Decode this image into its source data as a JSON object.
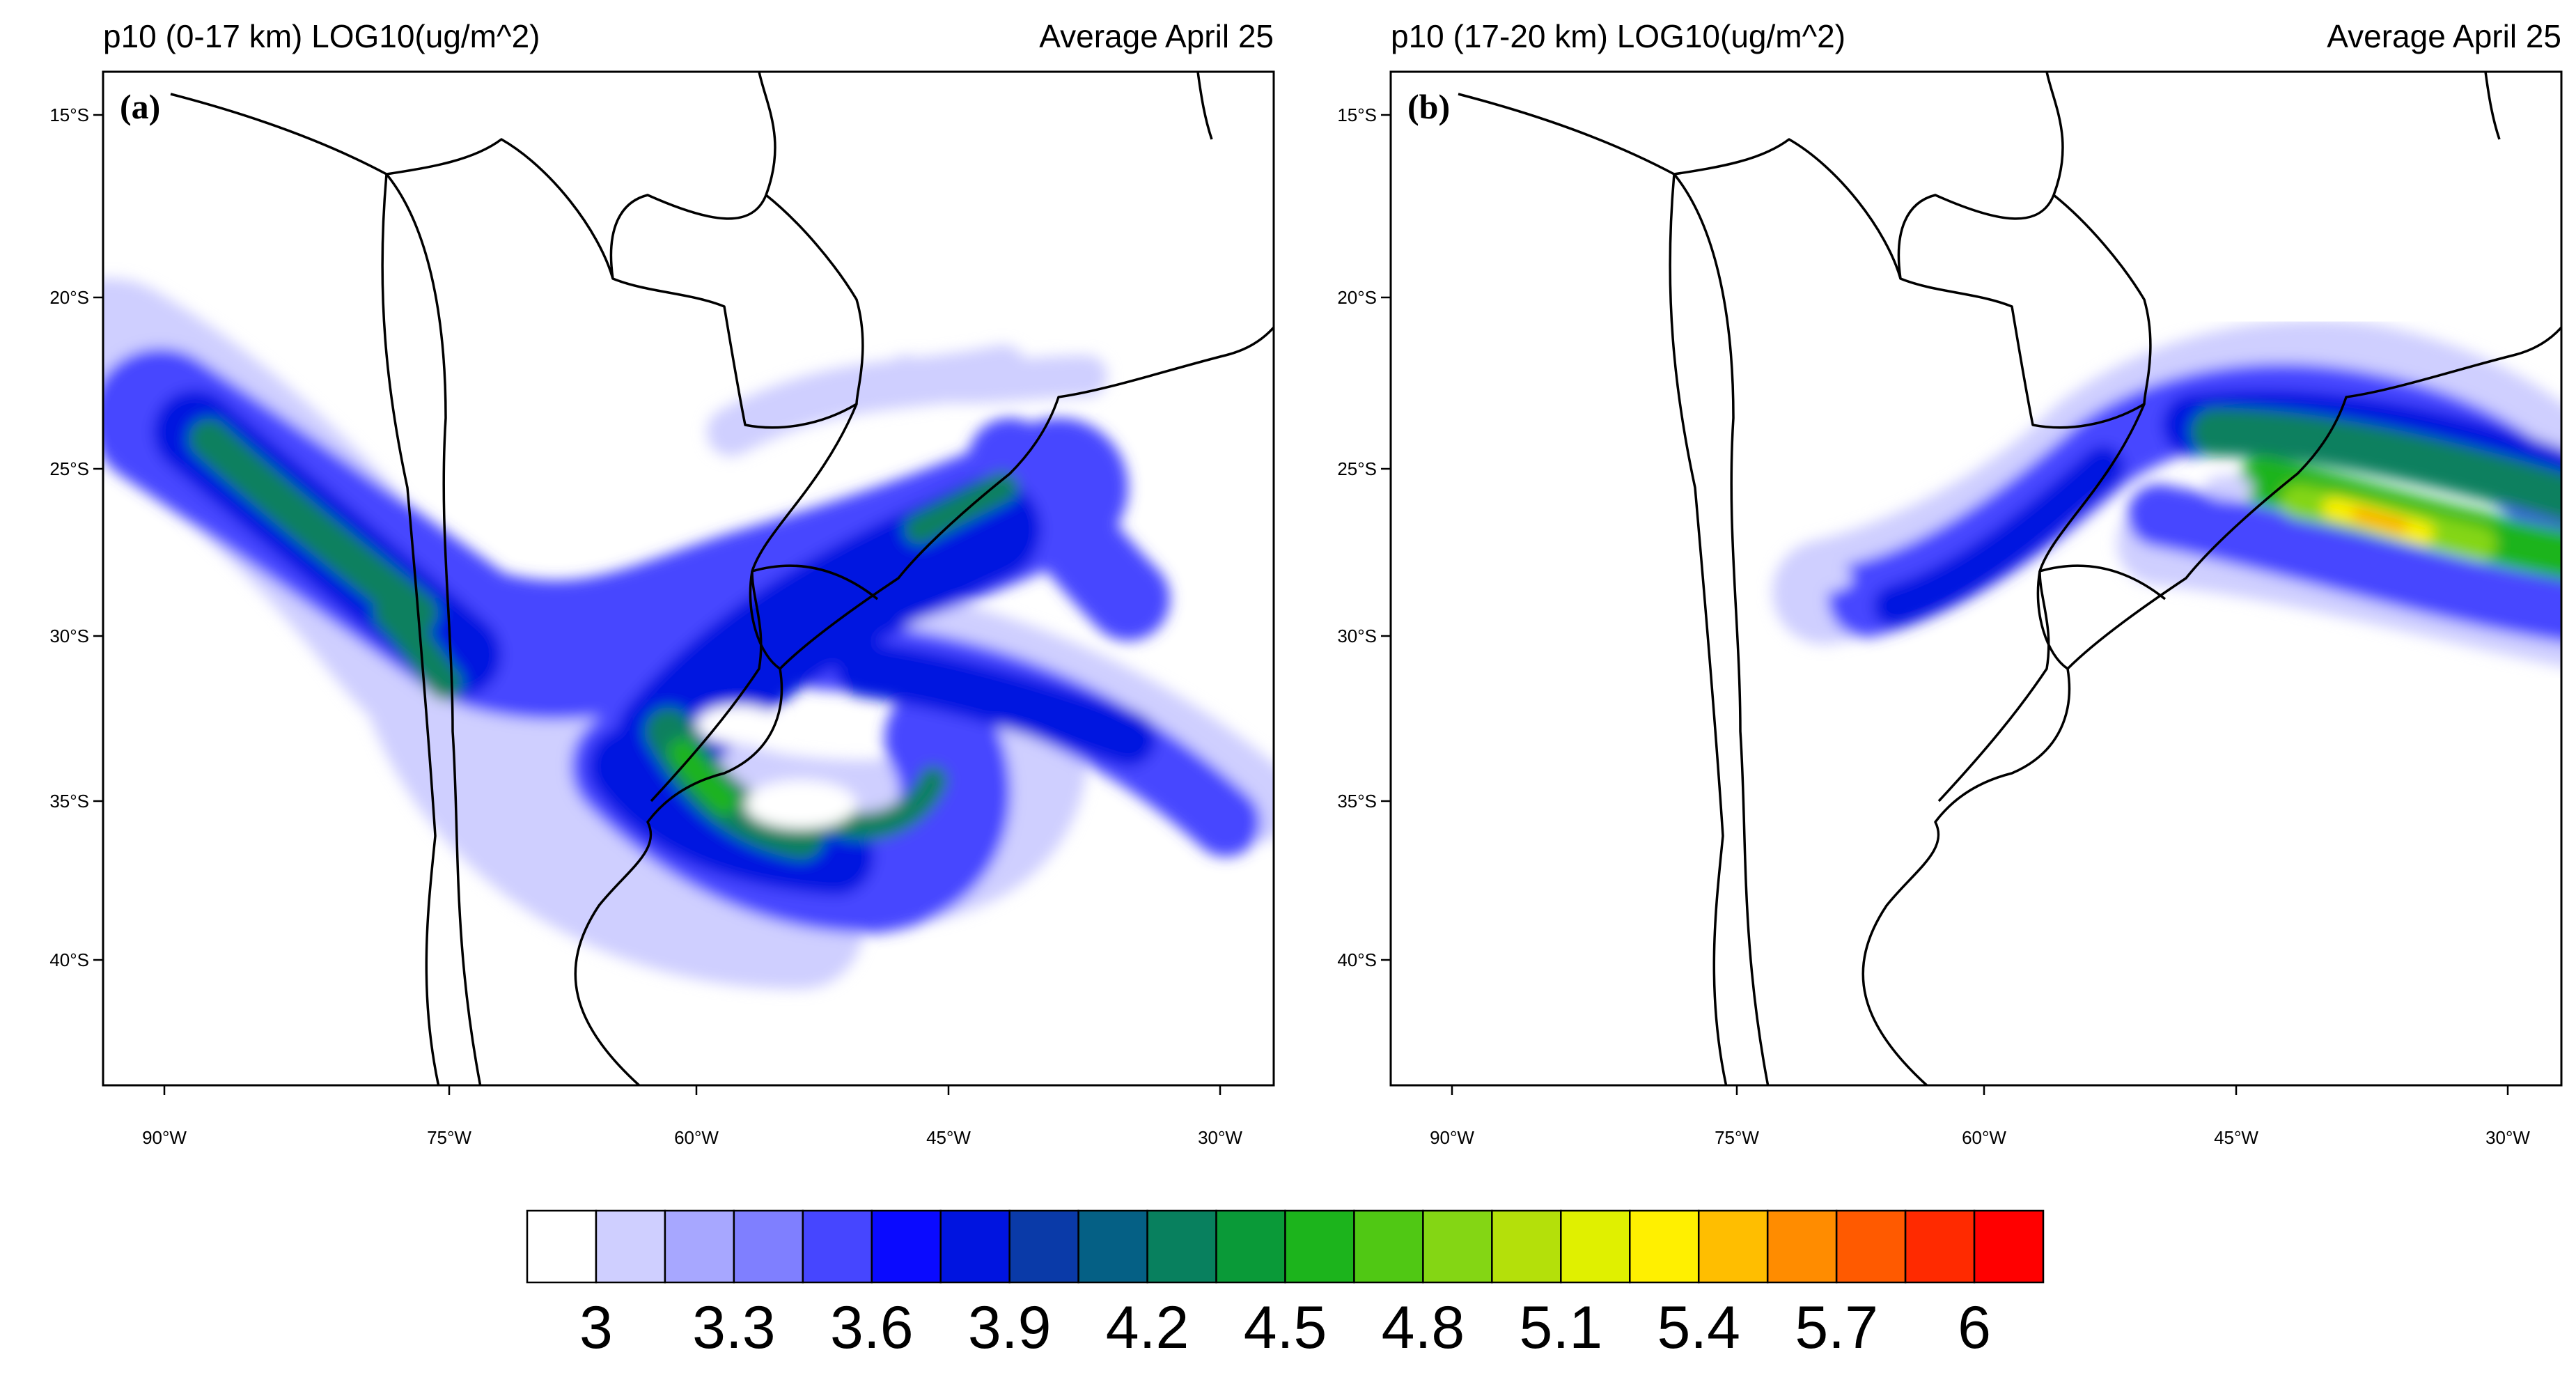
{
  "panels": [
    {
      "id": "a",
      "label": "(a)",
      "title_left": "p10 (0-17 km) LOG10(ug/m^2)",
      "title_right": "Average April 25",
      "lat_ticks": [
        "15°S",
        "20°S",
        "25°S",
        "30°S",
        "35°S",
        "40°S"
      ],
      "lon_ticks": [
        "90°W",
        "75°W",
        "60°W",
        "45°W",
        "30°W"
      ]
    },
    {
      "id": "b",
      "label": "(b)",
      "title_left": "p10 (17-20 km) LOG10(ug/m^2)",
      "title_right": "Average April 25",
      "lat_ticks": [
        "15°S",
        "20°S",
        "25°S",
        "30°S",
        "35°S",
        "40°S"
      ],
      "lon_ticks": [
        "90°W",
        "75°W",
        "60°W",
        "45°W",
        "30°W"
      ]
    }
  ],
  "colorbar": {
    "colors": [
      "#ffffff",
      "#cfcfff",
      "#a7a7ff",
      "#7f7fff",
      "#4646ff",
      "#0a0aff",
      "#0014e0",
      "#0a3aa8",
      "#056085",
      "#08805e",
      "#0a9a38",
      "#1cb41c",
      "#50c814",
      "#84d614",
      "#b4e00a",
      "#e0f000",
      "#fff000",
      "#ffbe00",
      "#ff8c00",
      "#ff5a00",
      "#ff2a00",
      "#ff0000"
    ],
    "labels": [
      "3",
      "3.3",
      "3.6",
      "3.9",
      "4.2",
      "4.5",
      "4.8",
      "5.1",
      "5.4",
      "5.7",
      "6"
    ]
  }
}
